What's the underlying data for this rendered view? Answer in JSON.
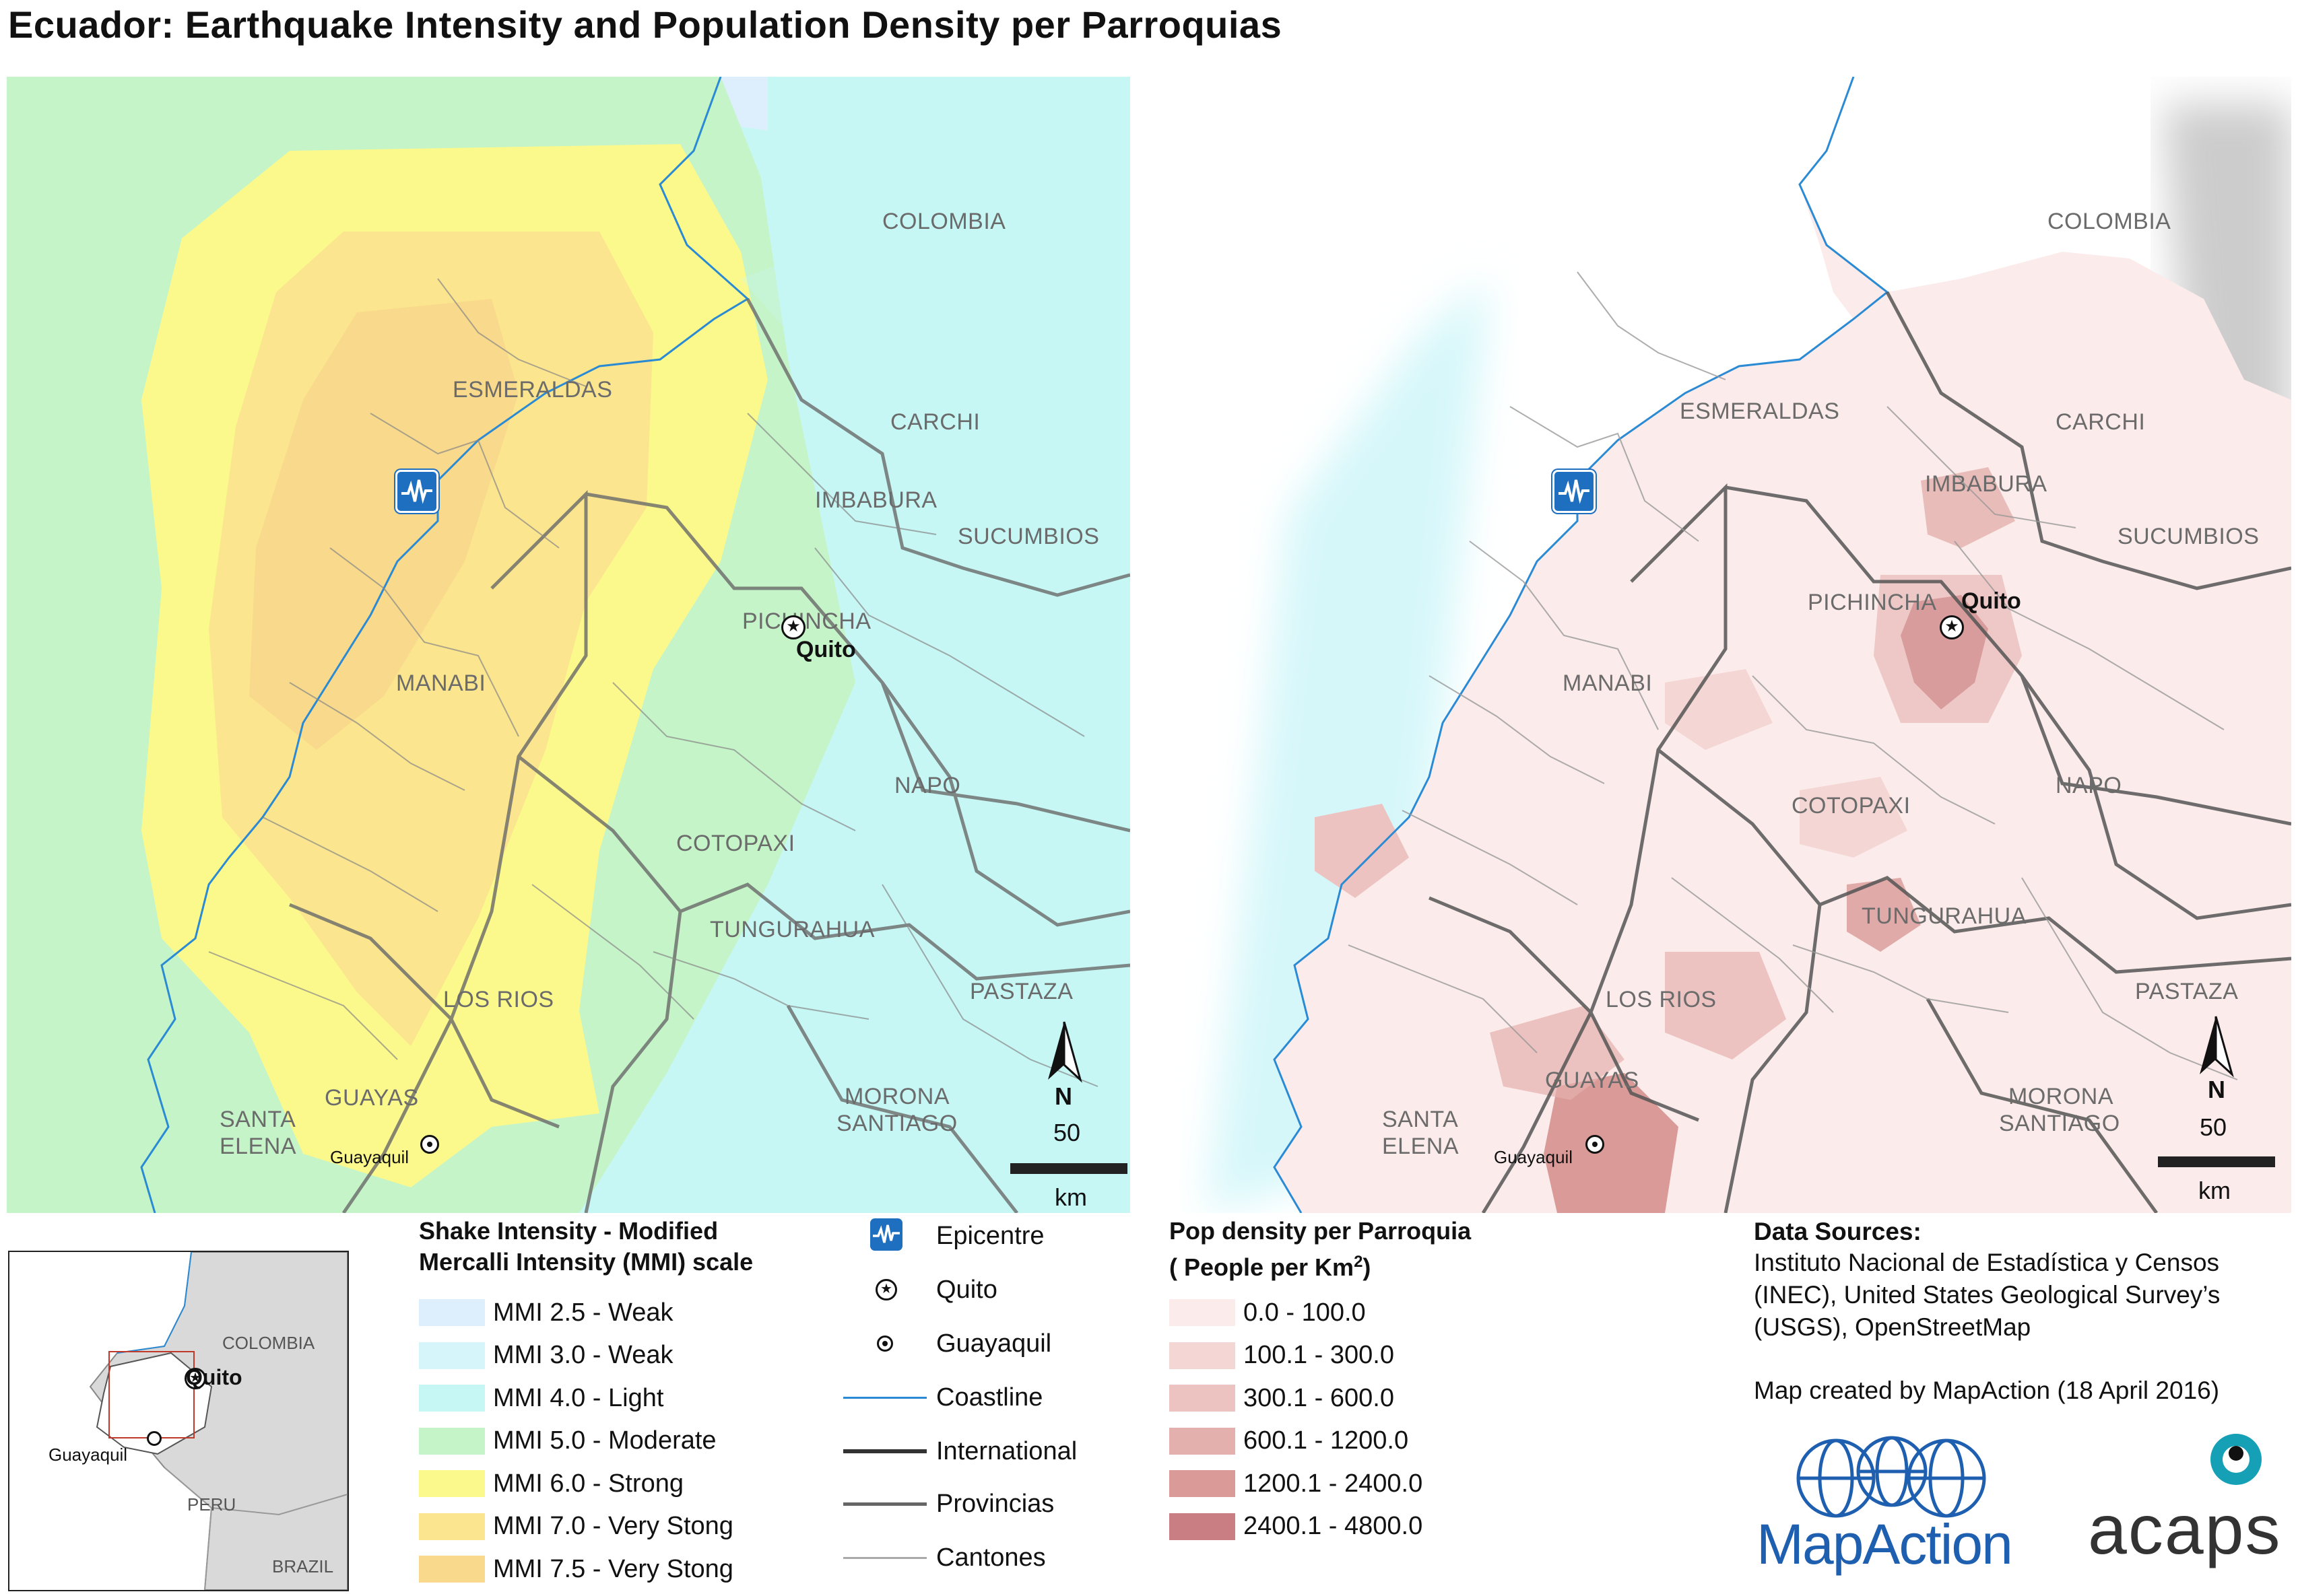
{
  "title": "Ecuador: Earthquake Intensity and Population Density per Parroquias",
  "map_left": {
    "labels": {
      "colombia": "COLOMBIA",
      "esmeraldas": "ESMERALDAS",
      "carchi": "CARCHI",
      "imbabura": "IMBABURA",
      "sucumbios": "SUCUMBIOS",
      "pichincha": "PICHINCHA",
      "manabi": "MANABI",
      "napo": "NAPO",
      "cotopaxi": "COTOPAXI",
      "tungurahua": "TUNGURAHUA",
      "pastaza": "PASTAZA",
      "los_rios": "LOS RIOS",
      "guayas": "GUAYAS",
      "santa_elena_1": "SANTA",
      "santa_elena_2": "ELENA",
      "morona_1": "MORONA",
      "morona_2": "SANTIAGO"
    },
    "cities": {
      "quito": "Quito",
      "guayaquil": "Guayaquil"
    },
    "north": "N",
    "scale_value": "50",
    "scale_unit": "km"
  },
  "map_right": {
    "labels": {
      "colombia": "COLOMBIA",
      "esmeraldas": "ESMERALDAS",
      "carchi": "CARCHI",
      "imbabura": "IMBABURA",
      "sucumbios": "SUCUMBIOS",
      "pichincha": "PICHINCHA",
      "manabi": "MANABI",
      "napo": "NAPO",
      "cotopaxi": "COTOPAXI",
      "tungurahua": "TUNGURAHUA",
      "pastaza": "PASTAZA",
      "los_rios": "LOS RIOS",
      "guayas": "GUAYAS",
      "santa_elena_1": "SANTA",
      "santa_elena_2": "ELENA",
      "morona_1": "MORONA",
      "morona_2": "SANTIAGO"
    },
    "cities": {
      "quito": "Quito",
      "guayaquil": "Guayaquil"
    },
    "north": "N",
    "scale_value": "50",
    "scale_unit": "km"
  },
  "inset": {
    "colombia": "COLOMBIA",
    "peru": "PERU",
    "brazil": "BRAZIL",
    "quito": "Quito",
    "guayaquil": "Guayaquil"
  },
  "shake_legend": {
    "title_line1": "Shake Intensity - Modified",
    "title_line2": "Mercalli Intensity (MMI) scale",
    "items": [
      {
        "label": "MMI 2.5 - Weak",
        "color": "#ddeefc"
      },
      {
        "label": "MMI 3.0 - Weak",
        "color": "#d6f5fb"
      },
      {
        "label": "MMI 4.0 - Light",
        "color": "#c6f7f5"
      },
      {
        "label": "MMI 5.0 - Moderate",
        "color": "#c5f4c8"
      },
      {
        "label": "MMI 6.0 - Strong",
        "color": "#fbf98c"
      },
      {
        "label": "MMI 7.0 - Very Stong",
        "color": "#fbe58e"
      },
      {
        "label": "MMI 7.5 - Very Stong",
        "color": "#f9d98b"
      }
    ]
  },
  "symbol_legend": {
    "items": [
      {
        "label": "Epicentre",
        "icon": "epicentre-icon"
      },
      {
        "label": "Quito",
        "icon": "capital-star-icon"
      },
      {
        "label": "Guayaquil",
        "icon": "city-dot-icon"
      },
      {
        "label": "Coastline",
        "icon": "coastline-line"
      },
      {
        "label": "International",
        "icon": "international-line"
      },
      {
        "label": "Provincias",
        "icon": "province-line"
      },
      {
        "label": "Cantones",
        "icon": "canton-line"
      }
    ]
  },
  "pop_legend": {
    "title_line1": "Pop density per Parroquia",
    "title_line2_prefix": "( People per Km",
    "title_sup": "2",
    "title_line2_suffix": ")",
    "items": [
      {
        "label": "0.0 - 100.0",
        "color": "#fbebea"
      },
      {
        "label": "100.1 - 300.0",
        "color": "#f4d6d4"
      },
      {
        "label": "300.1 - 600.0",
        "color": "#ecc3c0"
      },
      {
        "label": "600.1 - 1200.0",
        "color": "#e4b0ad"
      },
      {
        "label": "1200.1 - 2400.0",
        "color": "#d99a98"
      },
      {
        "label": "2400.1 - 4800.0",
        "color": "#c87e82"
      }
    ]
  },
  "sources": {
    "title": "Data Sources:",
    "line1": "Instituto Nacional de Estadística y Censos",
    "line2": "(INEC), United States Geological Survey’s",
    "line3": "(USGS), OpenStreetMap",
    "credit": "Map created by MapAction (18 April 2016)"
  },
  "logos": {
    "mapaction": "MapAction",
    "acaps": "acaps"
  }
}
